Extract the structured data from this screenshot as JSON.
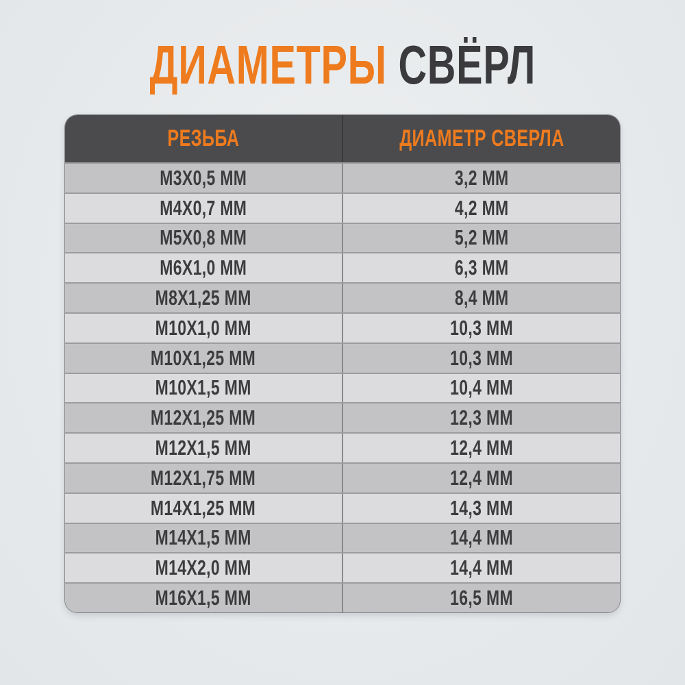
{
  "title": {
    "highlight": "ДИАМЕТРЫ",
    "rest": "СВЁРЛ"
  },
  "chart_data": {
    "type": "table",
    "title": "ДИАМЕТРЫ СВЁРЛ",
    "columns": [
      "РЕЗЬБА",
      "ДИАМЕТР СВЕРЛА"
    ],
    "rows": [
      [
        "М3Х0,5 ММ",
        "3,2 ММ"
      ],
      [
        "М4Х0,7 ММ",
        "4,2 ММ"
      ],
      [
        "М5Х0,8 ММ",
        "5,2 ММ"
      ],
      [
        "М6Х1,0 ММ",
        "6,3 ММ"
      ],
      [
        "М8Х1,25 ММ",
        "8,4 ММ"
      ],
      [
        "М10Х1,0 ММ",
        "10,3 ММ"
      ],
      [
        "М10Х1,25 ММ",
        "10,3 ММ"
      ],
      [
        "М10Х1,5 ММ",
        "10,4 ММ"
      ],
      [
        "М12Х1,25 ММ",
        "12,3 ММ"
      ],
      [
        "М12Х1,5 ММ",
        "12,4 ММ"
      ],
      [
        "М12Х1,75 ММ",
        "12,4 ММ"
      ],
      [
        "М14Х1,25 ММ",
        "14,3 ММ"
      ],
      [
        "М14Х1,5 ММ",
        "14,4 ММ"
      ],
      [
        "М14Х2,0 ММ",
        "14,4 ММ"
      ],
      [
        "М16Х1,5 ММ",
        "16,5 ММ"
      ]
    ]
  },
  "colors": {
    "accent_orange": "#ee7b1e",
    "title_dark": "#3b3b3d",
    "header_bg": "#4b4b4d",
    "row_dark": "#c3c3c5",
    "row_light": "#dcdcde",
    "page_bg": "#e7eaec"
  }
}
